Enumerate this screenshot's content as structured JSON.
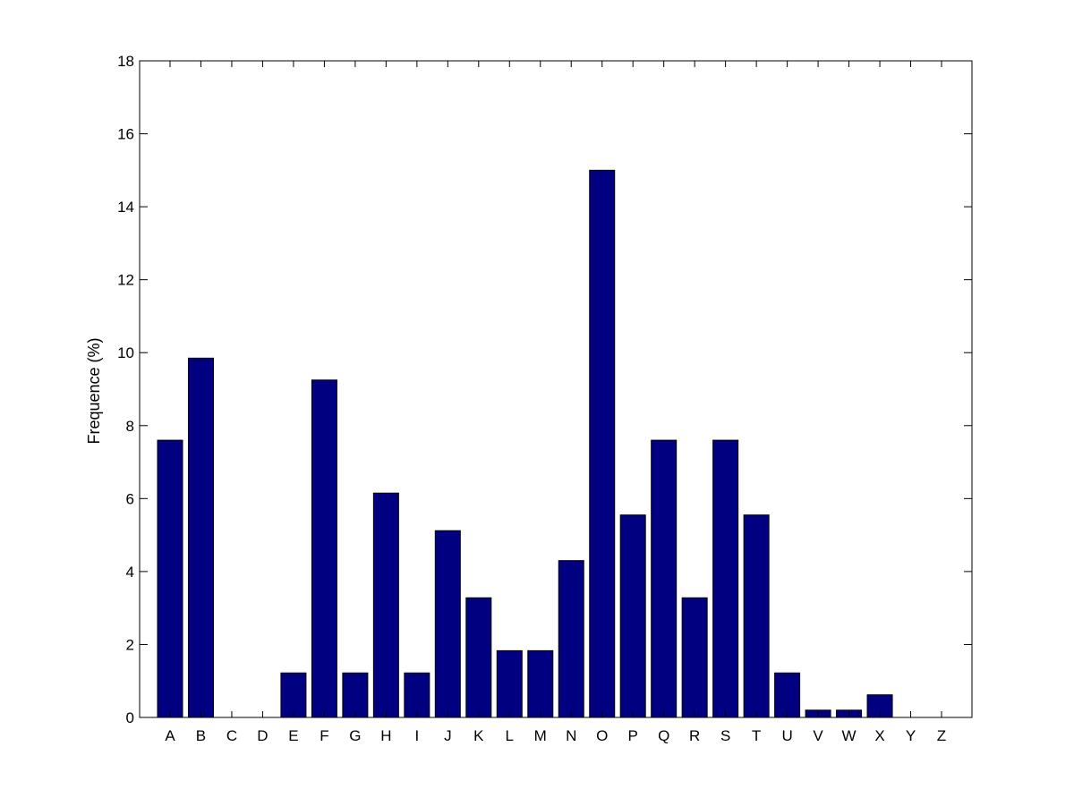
{
  "chart_data": {
    "type": "bar",
    "title": "",
    "xlabel": "",
    "ylabel": "Frequence (%)",
    "categories": [
      "A",
      "B",
      "C",
      "D",
      "E",
      "F",
      "G",
      "H",
      "I",
      "J",
      "K",
      "L",
      "M",
      "N",
      "O",
      "P",
      "Q",
      "R",
      "S",
      "T",
      "U",
      "V",
      "W",
      "X",
      "Y",
      "Z"
    ],
    "values": [
      7.6,
      9.85,
      0,
      0,
      1.22,
      9.25,
      1.22,
      6.15,
      1.22,
      5.12,
      3.28,
      1.83,
      1.83,
      4.3,
      15.0,
      5.55,
      7.6,
      3.28,
      7.6,
      5.55,
      1.22,
      0.2,
      0.2,
      0.62,
      0,
      0
    ],
    "ylim": [
      0,
      18
    ],
    "yticks": [
      0,
      2,
      4,
      6,
      8,
      10,
      12,
      14,
      16,
      18
    ],
    "grid": false,
    "legend": "none",
    "bar_color": "#000080"
  }
}
